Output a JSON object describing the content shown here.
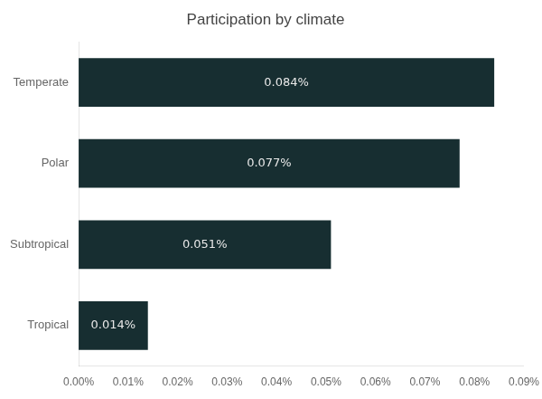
{
  "chart_data": {
    "type": "bar",
    "orientation": "horizontal",
    "title": "Participation by climate",
    "categories": [
      "Temperate",
      "Polar",
      "Subtropical",
      "Tropical"
    ],
    "values": [
      0.00084,
      0.00077,
      0.00051,
      0.00014
    ],
    "value_labels": [
      "0.084%",
      "0.077%",
      "0.051%",
      "0.014%"
    ],
    "color": "#172e31",
    "xlim": [
      0,
      0.0009
    ],
    "xticks": [
      {
        "value": 0.0,
        "label": "0.00%"
      },
      {
        "value": 0.0001,
        "label": "0.01%"
      },
      {
        "value": 0.0002,
        "label": "0.02%"
      },
      {
        "value": 0.0003,
        "label": "0.03%"
      },
      {
        "value": 0.0004,
        "label": "0.04%"
      },
      {
        "value": 0.0005,
        "label": "0.05%"
      },
      {
        "value": 0.0006,
        "label": "0.06%"
      },
      {
        "value": 0.0007,
        "label": "0.07%"
      },
      {
        "value": 0.0008,
        "label": "0.08%"
      },
      {
        "value": 0.0009,
        "label": "0.09%"
      }
    ],
    "grid": false,
    "data_labels": true
  }
}
